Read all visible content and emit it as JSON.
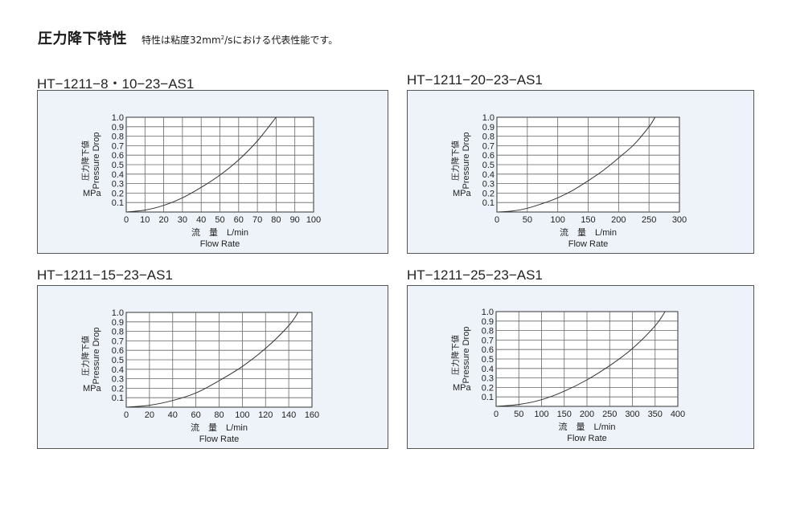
{
  "header": {
    "title": "圧力降下特性",
    "note_before": "特性は粘度32mm",
    "note_sup": "2",
    "note_after": "/sにおける代表性能です。"
  },
  "chart_data": [
    {
      "type": "line",
      "title": "HT−1211−8・10−23−AS1",
      "ylabel_jp": "圧力降下値",
      "ylabel_en": "Pressure Drop",
      "yunit": "MPa",
      "xlabel_jp": "流　量　L/min",
      "xlabel_en": "Flow Rate",
      "xlim": [
        0,
        100
      ],
      "ylim": [
        0,
        1.0
      ],
      "xticks": [
        0,
        10,
        20,
        30,
        40,
        50,
        60,
        70,
        80,
        90,
        100
      ],
      "yticks": [
        0.1,
        0.2,
        0.3,
        0.4,
        0.5,
        0.6,
        0.7,
        0.8,
        0.9,
        1.0
      ],
      "grid": true,
      "series": [
        {
          "x": [
            0,
            10,
            20,
            30,
            40,
            50,
            60,
            70,
            80
          ],
          "y": [
            0,
            0.02,
            0.07,
            0.15,
            0.26,
            0.39,
            0.55,
            0.75,
            1.0
          ]
        }
      ]
    },
    {
      "type": "line",
      "title": "HT−1211−20−23−AS1",
      "ylabel_jp": "圧力降下値",
      "ylabel_en": "Pressure Drop",
      "yunit": "MPa",
      "xlabel_jp": "流　量　L/min",
      "xlabel_en": "Flow Rate",
      "xlim": [
        0,
        300
      ],
      "ylim": [
        0,
        1.0
      ],
      "xticks": [
        0,
        50,
        100,
        150,
        200,
        250,
        300
      ],
      "yticks": [
        0.1,
        0.2,
        0.3,
        0.4,
        0.5,
        0.6,
        0.7,
        0.8,
        0.9,
        1.0
      ],
      "grid": true,
      "series": [
        {
          "x": [
            0,
            25,
            50,
            75,
            100,
            125,
            150,
            175,
            200,
            225,
            250,
            260
          ],
          "y": [
            0,
            0.01,
            0.04,
            0.09,
            0.15,
            0.23,
            0.33,
            0.44,
            0.57,
            0.71,
            0.9,
            1.0
          ]
        }
      ]
    },
    {
      "type": "line",
      "title": "HT−1211−15−23−AS1",
      "ylabel_jp": "圧力降下値",
      "ylabel_en": "Pressure Drop",
      "yunit": "MPa",
      "xlabel_jp": "流　量　L/min",
      "xlabel_en": "Flow Rate",
      "xlim": [
        0,
        160
      ],
      "ylim": [
        0,
        1.0
      ],
      "xticks": [
        0,
        20,
        40,
        60,
        80,
        100,
        120,
        140,
        160
      ],
      "yticks": [
        0.1,
        0.2,
        0.3,
        0.4,
        0.5,
        0.6,
        0.7,
        0.8,
        0.9,
        1.0
      ],
      "grid": true,
      "series": [
        {
          "x": [
            0,
            20,
            40,
            60,
            80,
            100,
            120,
            140,
            148
          ],
          "y": [
            0,
            0.02,
            0.07,
            0.15,
            0.28,
            0.43,
            0.62,
            0.86,
            1.0
          ]
        }
      ]
    },
    {
      "type": "line",
      "title": "HT−1211−25−23−AS1",
      "ylabel_jp": "圧力降下値",
      "ylabel_en": "Pressure Drop",
      "yunit": "MPa",
      "xlabel_jp": "流　量　L/min",
      "xlabel_en": "Flow Rate",
      "xlim": [
        0,
        400
      ],
      "ylim": [
        0,
        1.0
      ],
      "xticks": [
        0,
        50,
        100,
        150,
        200,
        250,
        300,
        350,
        400
      ],
      "yticks": [
        0.1,
        0.2,
        0.3,
        0.4,
        0.5,
        0.6,
        0.7,
        0.8,
        0.9,
        1.0
      ],
      "grid": true,
      "series": [
        {
          "x": [
            0,
            50,
            100,
            150,
            200,
            250,
            300,
            350,
            372
          ],
          "y": [
            0,
            0.02,
            0.07,
            0.16,
            0.28,
            0.43,
            0.61,
            0.85,
            1.0
          ]
        }
      ]
    }
  ]
}
